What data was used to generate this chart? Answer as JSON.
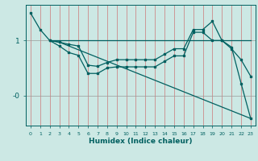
{
  "xlabel": "Humidex (Indice chaleur)",
  "bg_color": "#cce8e4",
  "line_color": "#006060",
  "grid_color_v": "#cc8888",
  "grid_color_h": "#888888",
  "xlim": [
    -0.5,
    23.5
  ],
  "ylim": [
    -0.55,
    1.65
  ],
  "yticks": [
    1.0,
    0.0
  ],
  "ytick_labels": [
    "1",
    "-0"
  ],
  "line1_x": [
    0,
    1,
    2,
    3,
    4,
    5,
    6,
    7,
    8,
    9,
    10,
    11,
    12,
    13,
    14,
    15,
    16,
    17,
    18,
    19,
    20,
    21,
    22,
    23
  ],
  "line1_y": [
    1.5,
    1.2,
    1.0,
    0.97,
    0.93,
    0.9,
    0.55,
    0.53,
    0.6,
    0.65,
    0.65,
    0.65,
    0.65,
    0.65,
    0.75,
    0.85,
    0.85,
    1.2,
    1.2,
    1.35,
    1.0,
    0.85,
    0.65,
    0.35
  ],
  "line2_x": [
    2,
    3,
    4,
    5,
    6,
    7,
    8,
    9,
    10,
    11,
    12,
    13,
    14,
    15,
    16,
    17,
    18,
    19,
    20,
    21,
    22,
    23
  ],
  "line2_y": [
    1.0,
    0.9,
    0.78,
    0.73,
    0.4,
    0.4,
    0.5,
    0.52,
    0.52,
    0.52,
    0.52,
    0.52,
    0.62,
    0.72,
    0.72,
    1.15,
    1.15,
    1.0,
    1.0,
    0.88,
    0.22,
    -0.42
  ],
  "line3_x": [
    2,
    3,
    23
  ],
  "line3_y": [
    1.0,
    0.97,
    -0.42
  ],
  "line4_x": [
    2,
    23
  ],
  "line4_y": [
    1.0,
    1.0
  ]
}
